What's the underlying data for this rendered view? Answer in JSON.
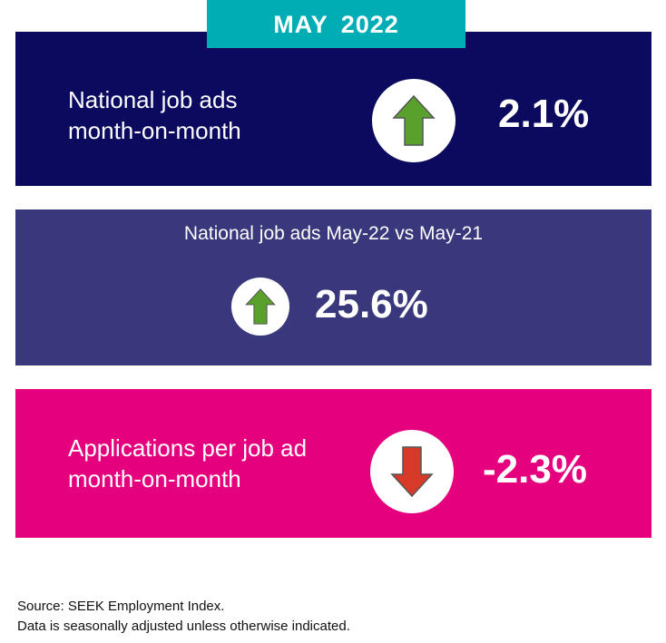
{
  "header": {
    "period": "MAY  2022"
  },
  "cards": [
    {
      "label_lines": [
        "National job ads",
        "month-on-month"
      ],
      "direction": "up",
      "value": "2.1%"
    },
    {
      "label": "National job ads May-22 vs May-21",
      "direction": "up",
      "value": "25.6%"
    },
    {
      "label_lines": [
        "Applications per job ad",
        "month-on-month"
      ],
      "direction": "down",
      "value": "-2.3%"
    }
  ],
  "colors": {
    "navy": "#0b0a5e",
    "purple": "#3a387c",
    "pink": "#e5007d",
    "teal": "#00adb5",
    "up": "#5aa02c",
    "down": "#d83a2a"
  },
  "footer": {
    "source": "Source: SEEK Employment Index.",
    "note": "Data is seasonally adjusted unless otherwise indicated."
  }
}
